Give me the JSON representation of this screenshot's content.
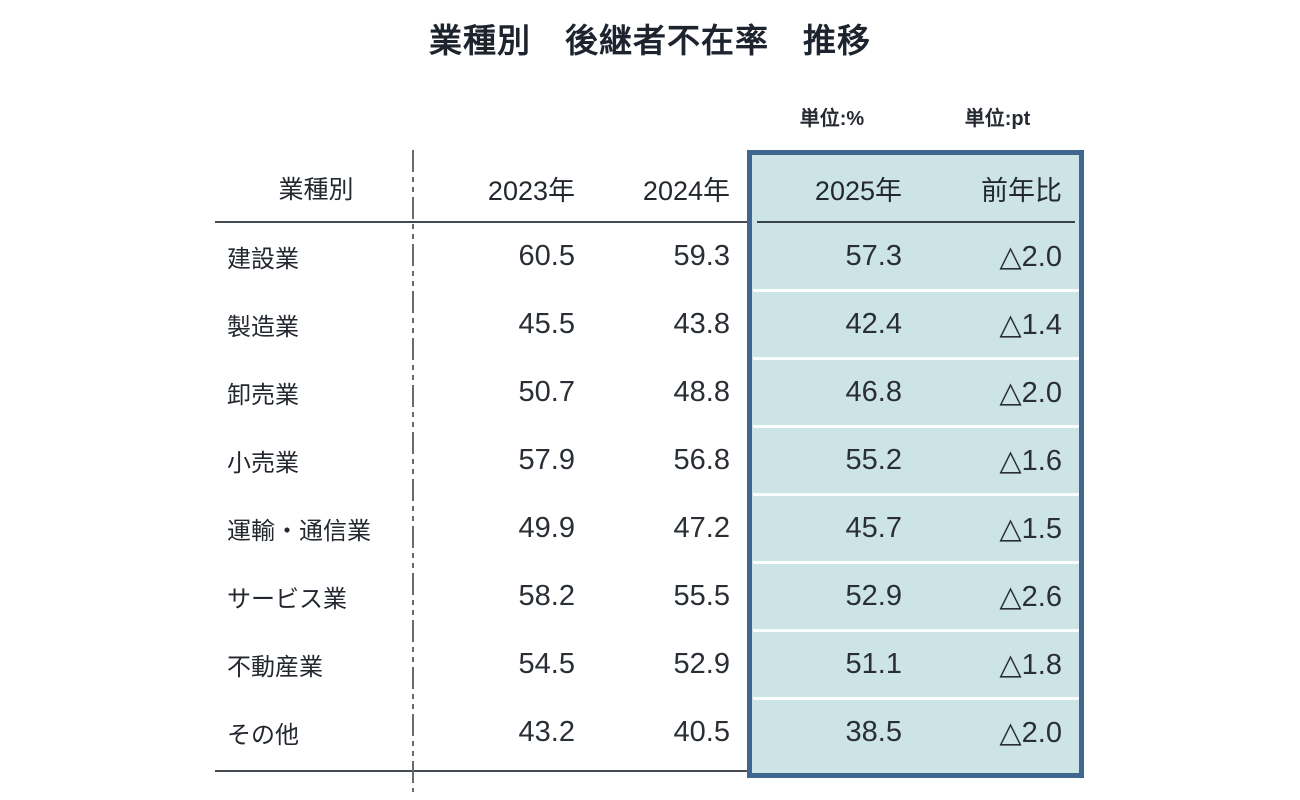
{
  "title": "業種別　後継者不在率　推移",
  "units": {
    "percent": "単位:%",
    "pt": "単位:pt"
  },
  "table": {
    "headers": {
      "industry": "業種別",
      "y2023": "2023年",
      "y2024": "2024年",
      "y2025": "2025年",
      "yoy": "前年比"
    },
    "rows": [
      {
        "label": "建設業",
        "y2023": "60.5",
        "y2024": "59.3",
        "y2025": "57.3",
        "yoy": "△2.0"
      },
      {
        "label": "製造業",
        "y2023": "45.5",
        "y2024": "43.8",
        "y2025": "42.4",
        "yoy": "△1.4"
      },
      {
        "label": "卸売業",
        "y2023": "50.7",
        "y2024": "48.8",
        "y2025": "46.8",
        "yoy": "△2.0"
      },
      {
        "label": "小売業",
        "y2023": "57.9",
        "y2024": "56.8",
        "y2025": "55.2",
        "yoy": "△1.6"
      },
      {
        "label": "運輸・通信業",
        "y2023": "49.9",
        "y2024": "47.2",
        "y2025": "45.7",
        "yoy": "△1.5"
      },
      {
        "label": "サービス業",
        "y2023": "58.2",
        "y2024": "55.5",
        "y2025": "52.9",
        "yoy": "△2.6"
      },
      {
        "label": "不動産業",
        "y2023": "54.5",
        "y2024": "52.9",
        "y2025": "51.1",
        "yoy": "△1.8"
      },
      {
        "label": "その他",
        "y2023": "43.2",
        "y2024": "40.5",
        "y2025": "38.5",
        "yoy": "△2.0"
      }
    ]
  },
  "colors": {
    "highlight_background": "#cde4e7",
    "highlight_border": "#3f688f",
    "rule": "#454b52",
    "text": "#262b33"
  },
  "chart_data": {
    "type": "table",
    "title": "業種別　後継者不在率　推移",
    "unit_notes": [
      "単位:%",
      "単位:pt"
    ],
    "columns": [
      "業種別",
      "2023年",
      "2024年",
      "2025年",
      "前年比"
    ],
    "rows": [
      [
        "建設業",
        60.5,
        59.3,
        57.3,
        -2.0
      ],
      [
        "製造業",
        45.5,
        43.8,
        42.4,
        -1.4
      ],
      [
        "卸売業",
        50.7,
        48.8,
        46.8,
        -2.0
      ],
      [
        "小売業",
        57.9,
        56.8,
        55.2,
        -1.6
      ],
      [
        "運輸・通信業",
        49.9,
        47.2,
        45.7,
        -1.5
      ],
      [
        "サービス業",
        58.2,
        55.5,
        52.9,
        -2.6
      ],
      [
        "不動産業",
        54.5,
        52.9,
        51.1,
        -1.8
      ],
      [
        "その他",
        43.2,
        40.5,
        38.5,
        -2.0
      ]
    ],
    "highlighted_columns": [
      "2025年",
      "前年比"
    ],
    "notes": "前年比 values shown with △ (triangle) meaning decrease in points"
  }
}
